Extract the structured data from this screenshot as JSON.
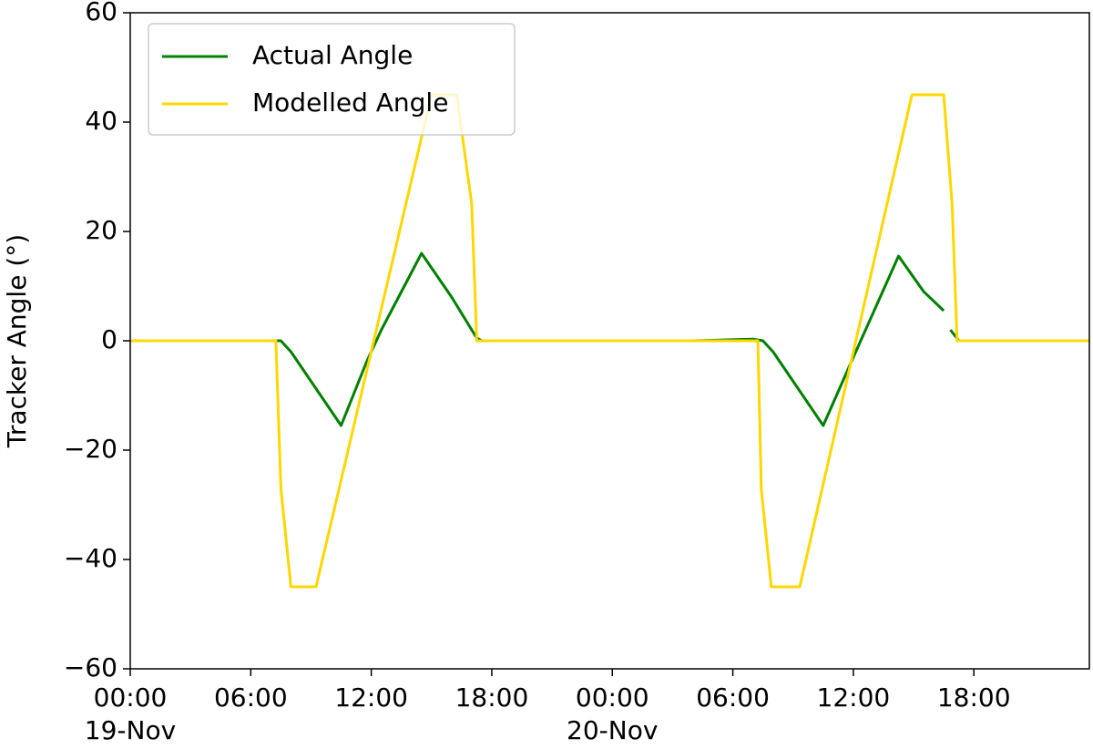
{
  "chart_data": {
    "type": "line",
    "ylabel": "Tracker Angle (°)",
    "ylim": [
      -60,
      60
    ],
    "yticks": [
      {
        "value": -60,
        "label": "−60"
      },
      {
        "value": -40,
        "label": "−40"
      },
      {
        "value": -20,
        "label": "−20"
      },
      0,
      20,
      40,
      60
    ],
    "xlim": [
      "19-Nov 00:00",
      "20-Nov 23:45"
    ],
    "xticks": [
      {
        "value": "19-Nov 00:00",
        "label": "00:00\n19-Nov"
      },
      {
        "value": "19-Nov 06:00",
        "label": "06:00"
      },
      {
        "value": "19-Nov 12:00",
        "label": "12:00"
      },
      {
        "value": "19-Nov 18:00",
        "label": "18:00"
      },
      {
        "value": "20-Nov 00:00",
        "label": "00:00\n20-Nov"
      },
      {
        "value": "20-Nov 06:00",
        "label": "06:00"
      },
      {
        "value": "20-Nov 12:00",
        "label": "12:00"
      },
      {
        "value": "20-Nov 18:00",
        "label": "18:00"
      }
    ],
    "legend": "upper left",
    "grid": false,
    "series": [
      {
        "name": "Actual Angle",
        "color": "#008000",
        "x": [
          "19-Nov 04:00",
          "19-Nov 07:30",
          "19-Nov 08:00",
          "19-Nov 10:30",
          "19-Nov 11:45",
          "19-Nov 12:30",
          "19-Nov 14:30",
          "19-Nov 16:00",
          "19-Nov 17:15",
          "19-Nov 17:30",
          "19-Nov 22:45",
          "20-Nov 04:00",
          "20-Nov 07:00",
          "20-Nov 07:30",
          "20-Nov 08:00",
          "20-Nov 10:30",
          "20-Nov 12:00",
          "20-Nov 14:15",
          "20-Nov 15:30",
          "20-Nov 16:30",
          "20-Nov 16:40",
          "20-Nov 16:50",
          "20-Nov 17:15",
          "20-Nov 22:45"
        ],
        "values": [
          0,
          0,
          -2,
          -15.5,
          -4,
          2,
          16,
          8,
          0.5,
          0,
          0,
          0,
          0.3,
          0,
          -2,
          -15.5,
          -3,
          15.5,
          9,
          5.5,
          null,
          2,
          0,
          0
        ]
      },
      {
        "name": "Modelled Angle",
        "color": "#ffd700",
        "x": [
          "19-Nov 00:00",
          "19-Nov 07:15",
          "19-Nov 07:30",
          "19-Nov 08:00",
          "19-Nov 09:15",
          "19-Nov 15:00",
          "19-Nov 16:15",
          "19-Nov 17:00",
          "19-Nov 17:15",
          "20-Nov 07:15",
          "20-Nov 07:25",
          "20-Nov 07:55",
          "20-Nov 09:20",
          "20-Nov 14:55",
          "20-Nov 16:30",
          "20-Nov 16:55",
          "20-Nov 17:10",
          "20-Nov 23:45"
        ],
        "values": [
          0,
          0,
          -27,
          -45,
          -45,
          45,
          45,
          25,
          0,
          0,
          -27,
          -45,
          -45,
          45,
          45,
          25,
          0,
          0
        ]
      }
    ]
  }
}
